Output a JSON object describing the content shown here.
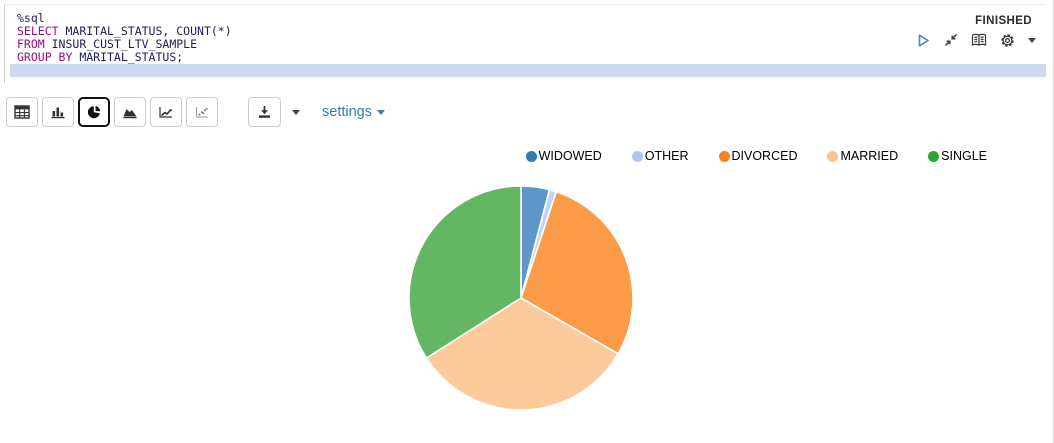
{
  "editor": {
    "language_hint": "%sql",
    "lines": [
      {
        "tokens": [
          {
            "text": "%sql",
            "type": "plain"
          }
        ]
      },
      {
        "tokens": [
          {
            "text": "SELECT",
            "type": "keyword"
          },
          {
            "text": " MARITAL_STATUS, COUNT(*)",
            "type": "plain"
          }
        ]
      },
      {
        "tokens": [
          {
            "text": "FROM",
            "type": "keyword"
          },
          {
            "text": " INSUR_CUST_LTV_SAMPLE",
            "type": "plain"
          }
        ]
      },
      {
        "tokens": [
          {
            "text": "GROUP BY",
            "type": "keyword"
          },
          {
            "text": " MARITAL_STATUS;",
            "type": "plain"
          }
        ]
      },
      {
        "tokens": [],
        "active": true
      }
    ],
    "active_line_color": "#cdd8f3",
    "keyword_color": "#930f80",
    "plain_color": "#1f1f50"
  },
  "status": {
    "label": "FINISHED"
  },
  "paragraph_controls": {
    "icons": [
      "play-icon",
      "compress-icon",
      "book-icon",
      "gear-icon",
      "caret-down-icon"
    ]
  },
  "toolbar": {
    "chart_types": [
      "table",
      "bar",
      "pie",
      "area",
      "line",
      "scatter"
    ],
    "active_chart": "pie",
    "download_icon": "download-icon",
    "settings_label": "settings"
  },
  "chart_data": {
    "type": "pie",
    "title": "",
    "categories": [
      "WIDOWED",
      "OTHER",
      "DIVORCED",
      "MARRIED",
      "SINGLE"
    ],
    "values": [
      4.1,
      1.0,
      28.2,
      32.7,
      34.0
    ],
    "values_unit": "percent (estimated from slice angles, no labels shown)",
    "start_angle_deg": 0,
    "direction": "clockwise",
    "legend_position": "top-right",
    "legend_colors": [
      "#2e7bb8",
      "#aec7e8",
      "#f5821f",
      "#fdc38d",
      "#2fa335"
    ],
    "slice_colors": [
      "#5e97c9",
      "#c3d5ee",
      "#fb9a47",
      "#fccb9b",
      "#63b663"
    ],
    "slice_stroke": "#ffffff"
  },
  "colors": {
    "link_blue": "#337ab7",
    "play_blue": "#3f8ed0",
    "icon_dark": "#3a3a3a",
    "border_gray": "#cccccc"
  }
}
